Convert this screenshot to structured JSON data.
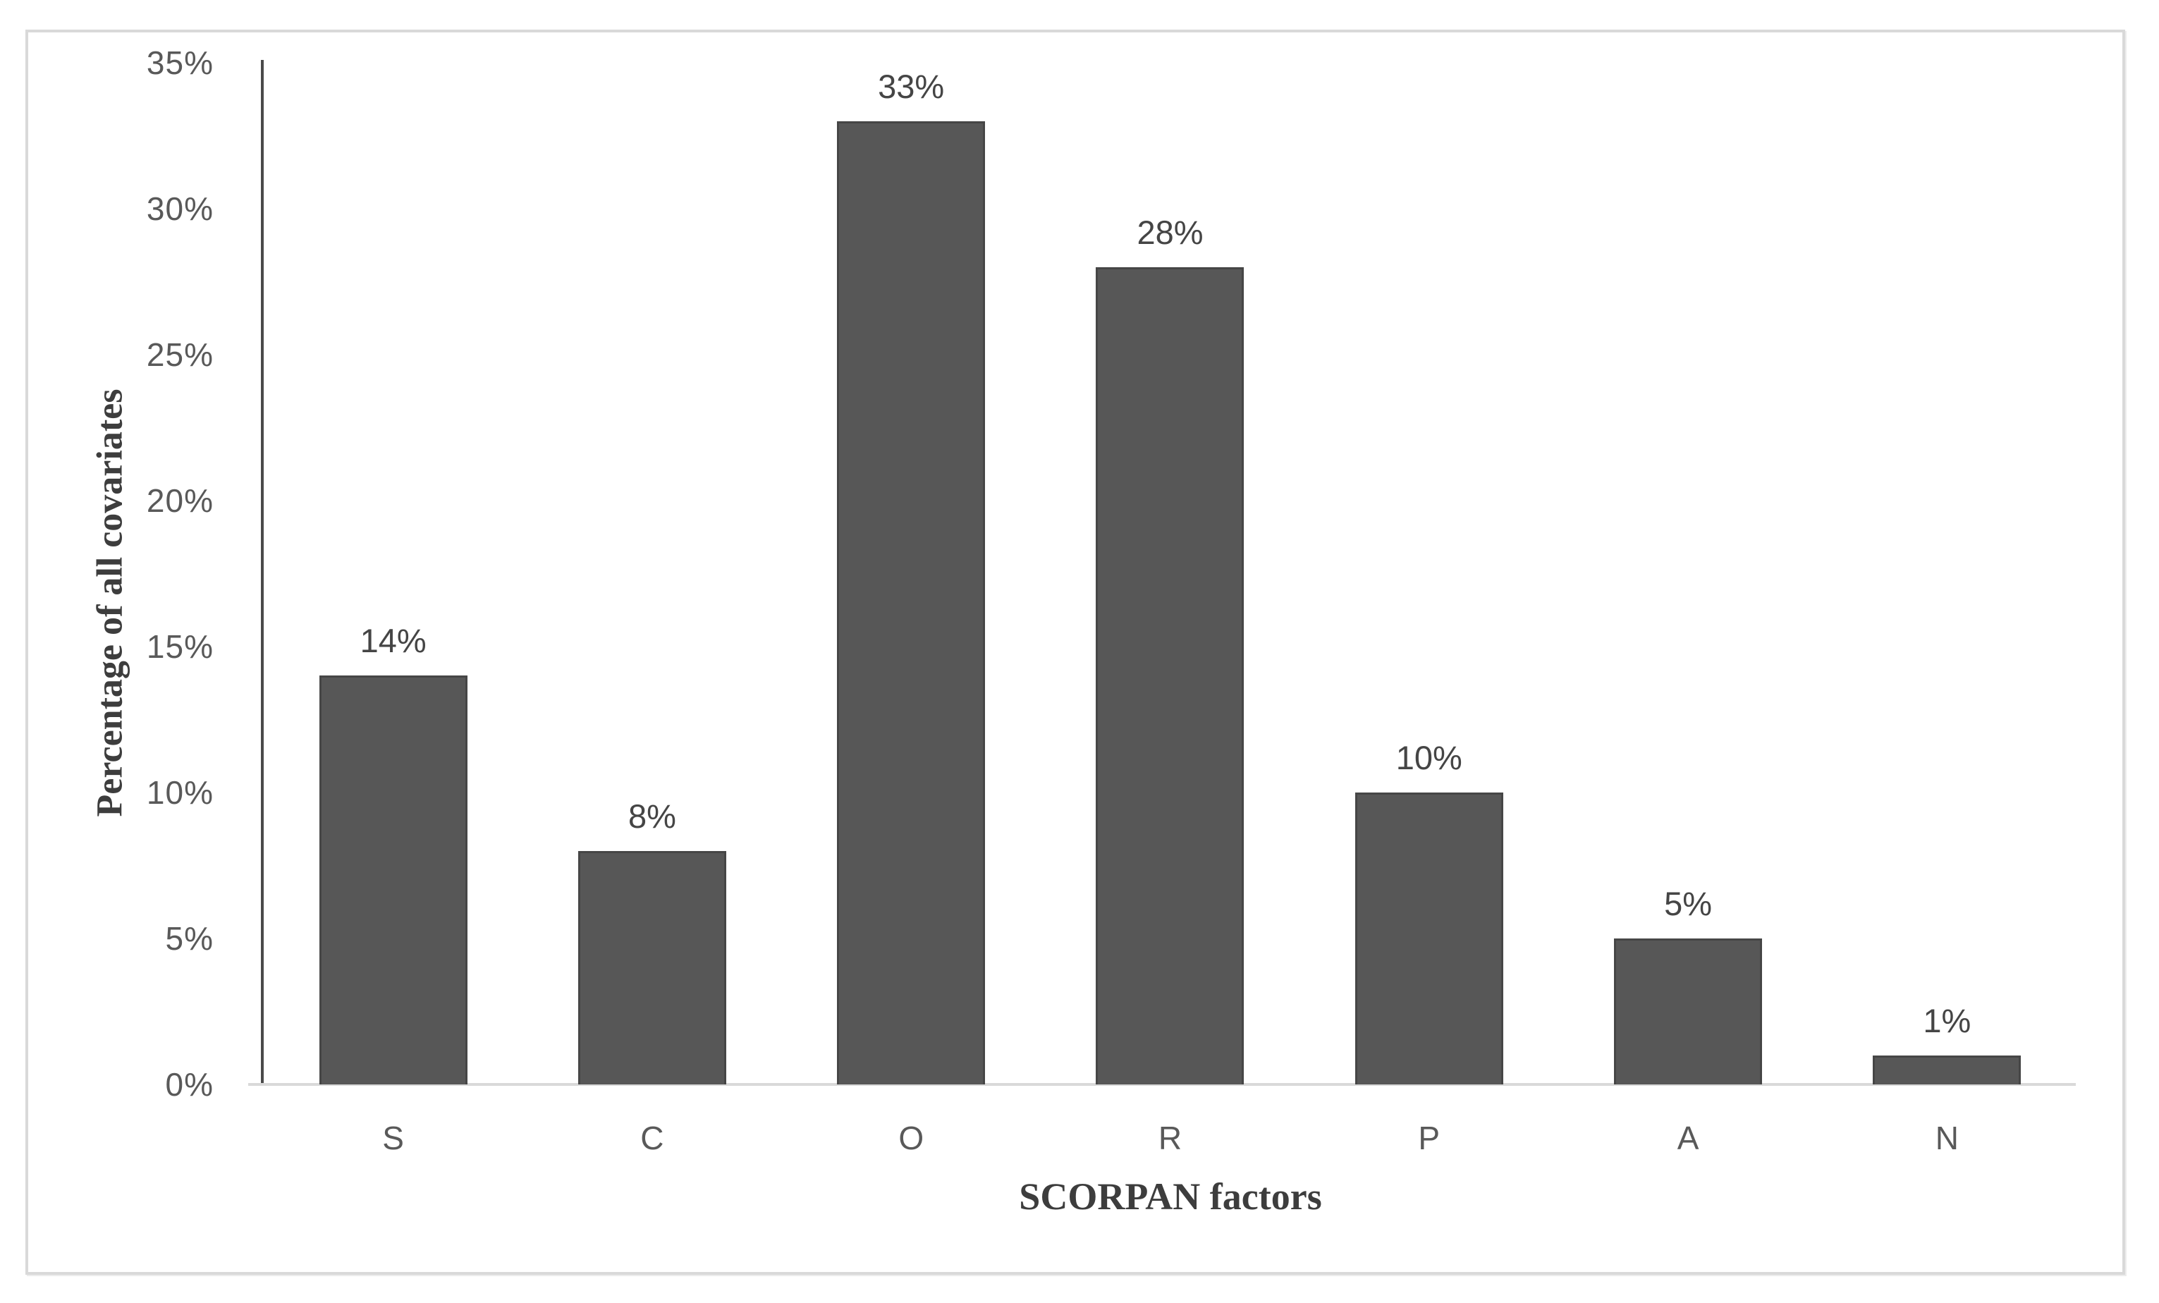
{
  "chart_data": {
    "type": "bar",
    "title": "",
    "xlabel": "SCORPAN factors",
    "ylabel": "Percentage of all covariates",
    "categories": [
      "S",
      "C",
      "O",
      "R",
      "P",
      "A",
      "N"
    ],
    "values": [
      14,
      8,
      33,
      28,
      10,
      5,
      1
    ],
    "data_labels": [
      "14%",
      "8%",
      "33%",
      "28%",
      "10%",
      "5%",
      "1%"
    ],
    "ylim": [
      0,
      35
    ],
    "ytick_step": 5,
    "ytick_labels": [
      "0%",
      "5%",
      "10%",
      "15%",
      "20%",
      "25%",
      "30%",
      "35%"
    ],
    "grid": false,
    "legend": false,
    "colors": {
      "bar_fill": "#575757",
      "bar_border": "#464646",
      "y_axis_line": "#4a4a4a",
      "x_axis_line": "#d9d9d9",
      "tick_label": "#595959",
      "data_label": "#454545",
      "axis_title": "#3d3d3d",
      "frame_border": "#d9d9d9",
      "background": "#ffffff"
    }
  }
}
